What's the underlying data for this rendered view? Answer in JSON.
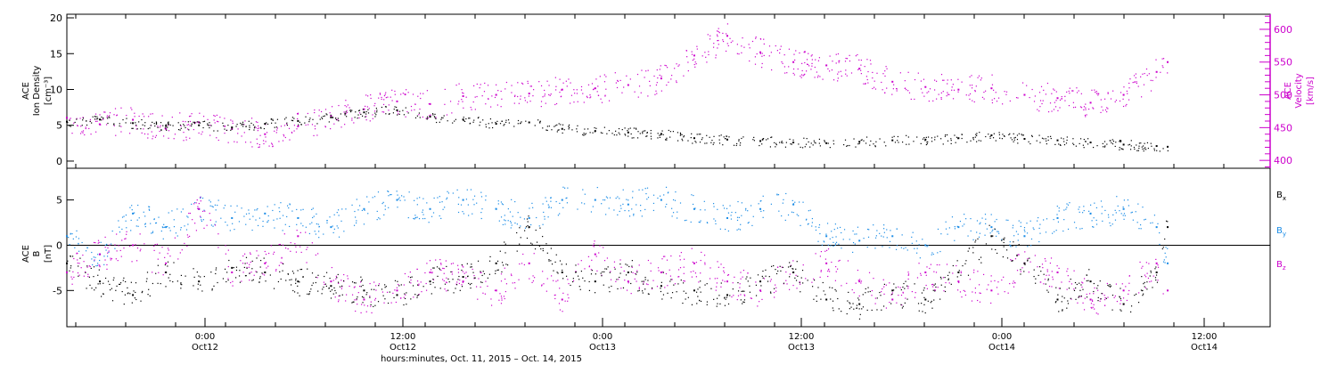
{
  "chart_data": [
    {
      "type": "scatter",
      "panel": "top",
      "ylabel_left": [
        "ACE",
        "Ion Density",
        "[cm⁻³]"
      ],
      "ylabel_right": [
        "ACE",
        "Velocity",
        "[km/s]"
      ],
      "y_left_ticks": [
        0,
        5,
        10,
        15,
        20
      ],
      "y_left_lim": [
        -1,
        20.5
      ],
      "y_right_ticks": [
        400,
        450,
        500,
        550,
        600
      ],
      "y_right_lim": [
        388,
        623
      ],
      "series": [
        {
          "color": "#000000",
          "axis": "left",
          "x": [
            0,
            3,
            6,
            9,
            12,
            15,
            18,
            21,
            24,
            27,
            30,
            33,
            36,
            39,
            42,
            45,
            48,
            51,
            54,
            57,
            60,
            63,
            66,
            69,
            72,
            75,
            78,
            81,
            84,
            87,
            90,
            93,
            96,
            99,
            100
          ],
          "y": [
            5.5,
            5.8,
            5.3,
            4.9,
            5.0,
            4.7,
            5.2,
            5.6,
            6.1,
            6.8,
            7.1,
            6.2,
            5.8,
            5.2,
            5.4,
            4.5,
            4.2,
            4.0,
            3.8,
            3.2,
            3.0,
            2.8,
            2.6,
            2.5,
            2.7,
            2.9,
            3.0,
            3.2,
            3.6,
            3.1,
            2.9,
            2.6,
            2.3,
            2.1,
            2.0
          ]
        },
        {
          "color": "#cc00cc",
          "axis": "right",
          "x": [
            0,
            3,
            6,
            9,
            12,
            15,
            18,
            21,
            24,
            27,
            30,
            33,
            36,
            39,
            42,
            45,
            48,
            51,
            54,
            57,
            60,
            63,
            66,
            69,
            72,
            75,
            78,
            81,
            84,
            87,
            90,
            93,
            96,
            99,
            100
          ],
          "y": [
            465,
            455,
            462,
            448,
            458,
            448,
            440,
            452,
            468,
            478,
            490,
            486,
            498,
            500,
            502,
            508,
            510,
            515,
            525,
            560,
            590,
            565,
            550,
            545,
            540,
            520,
            512,
            508,
            510,
            500,
            495,
            488,
            500,
            535,
            550
          ]
        }
      ]
    },
    {
      "type": "scatter",
      "panel": "bottom",
      "ylabel": [
        "ACE",
        "B",
        "[nT]"
      ],
      "y_ticks": [
        -5,
        0,
        5
      ],
      "y_lim": [
        -9,
        8.5
      ],
      "x_ticks": [
        "0:00",
        "12:00",
        "0:00",
        "12:00",
        "0:00",
        "12:00"
      ],
      "x_dates": [
        "Oct12",
        "Oct12",
        "Oct13",
        "Oct13",
        "Oct14",
        "Oct14"
      ],
      "xlabel": "hours:minutes, Oct. 11, 2015 – Oct. 14, 2015",
      "legend_position": "right",
      "series": [
        {
          "name": "Bx",
          "name_main": "B",
          "name_sub": "x",
          "color": "#000000",
          "x": [
            0,
            3,
            6,
            9,
            12,
            15,
            18,
            21,
            24,
            27,
            30,
            33,
            36,
            39,
            42,
            45,
            48,
            51,
            54,
            57,
            60,
            63,
            66,
            69,
            72,
            75,
            78,
            81,
            84,
            87,
            90,
            93,
            96,
            99,
            100
          ],
          "y": [
            -2,
            -4,
            -5.5,
            -3,
            -4,
            -2.5,
            -3,
            -4,
            -4.5,
            -5,
            -5.5,
            -4,
            -3.5,
            -2,
            2,
            -3,
            -4,
            -3,
            -4.5,
            -5,
            -5.5,
            -4,
            -3,
            -6,
            -6.5,
            -5,
            -6,
            -3,
            1,
            -2,
            -6,
            -4,
            -6.5,
            -3,
            2
          ]
        },
        {
          "name": "By",
          "name_main": "B",
          "name_sub": "y",
          "color": "#1a8ce6",
          "x": [
            0,
            3,
            6,
            9,
            12,
            15,
            18,
            21,
            24,
            27,
            30,
            33,
            36,
            39,
            42,
            45,
            48,
            51,
            54,
            57,
            60,
            63,
            66,
            69,
            72,
            75,
            78,
            81,
            84,
            87,
            90,
            93,
            96,
            99,
            100
          ],
          "y": [
            1,
            -1,
            3.5,
            2,
            4,
            3,
            3.5,
            3,
            2,
            4,
            5,
            4,
            5,
            4,
            3,
            5,
            5,
            4.5,
            5,
            4,
            3,
            4,
            4.5,
            1,
            0.5,
            1,
            0,
            2,
            2,
            1,
            3,
            3.5,
            4,
            2,
            -2
          ]
        },
        {
          "name": "Bz",
          "name_main": "B",
          "name_sub": "z",
          "color": "#cc00cc",
          "x": [
            0,
            3,
            6,
            9,
            12,
            15,
            18,
            21,
            24,
            27,
            30,
            33,
            36,
            39,
            42,
            45,
            48,
            51,
            54,
            57,
            60,
            63,
            66,
            69,
            72,
            75,
            78,
            81,
            84,
            87,
            90,
            93,
            96,
            99,
            100
          ],
          "y": [
            -3,
            -1,
            0,
            -2,
            4,
            -3,
            -2,
            1,
            -4,
            -6,
            -5,
            -3,
            -4,
            -5,
            -2,
            -6,
            -1,
            -4,
            -3,
            -2,
            -4,
            -5,
            -3,
            -2,
            -4,
            -6,
            -3,
            -4,
            -5,
            -2,
            -3,
            -6,
            -5,
            -2,
            -5
          ]
        }
      ]
    }
  ]
}
